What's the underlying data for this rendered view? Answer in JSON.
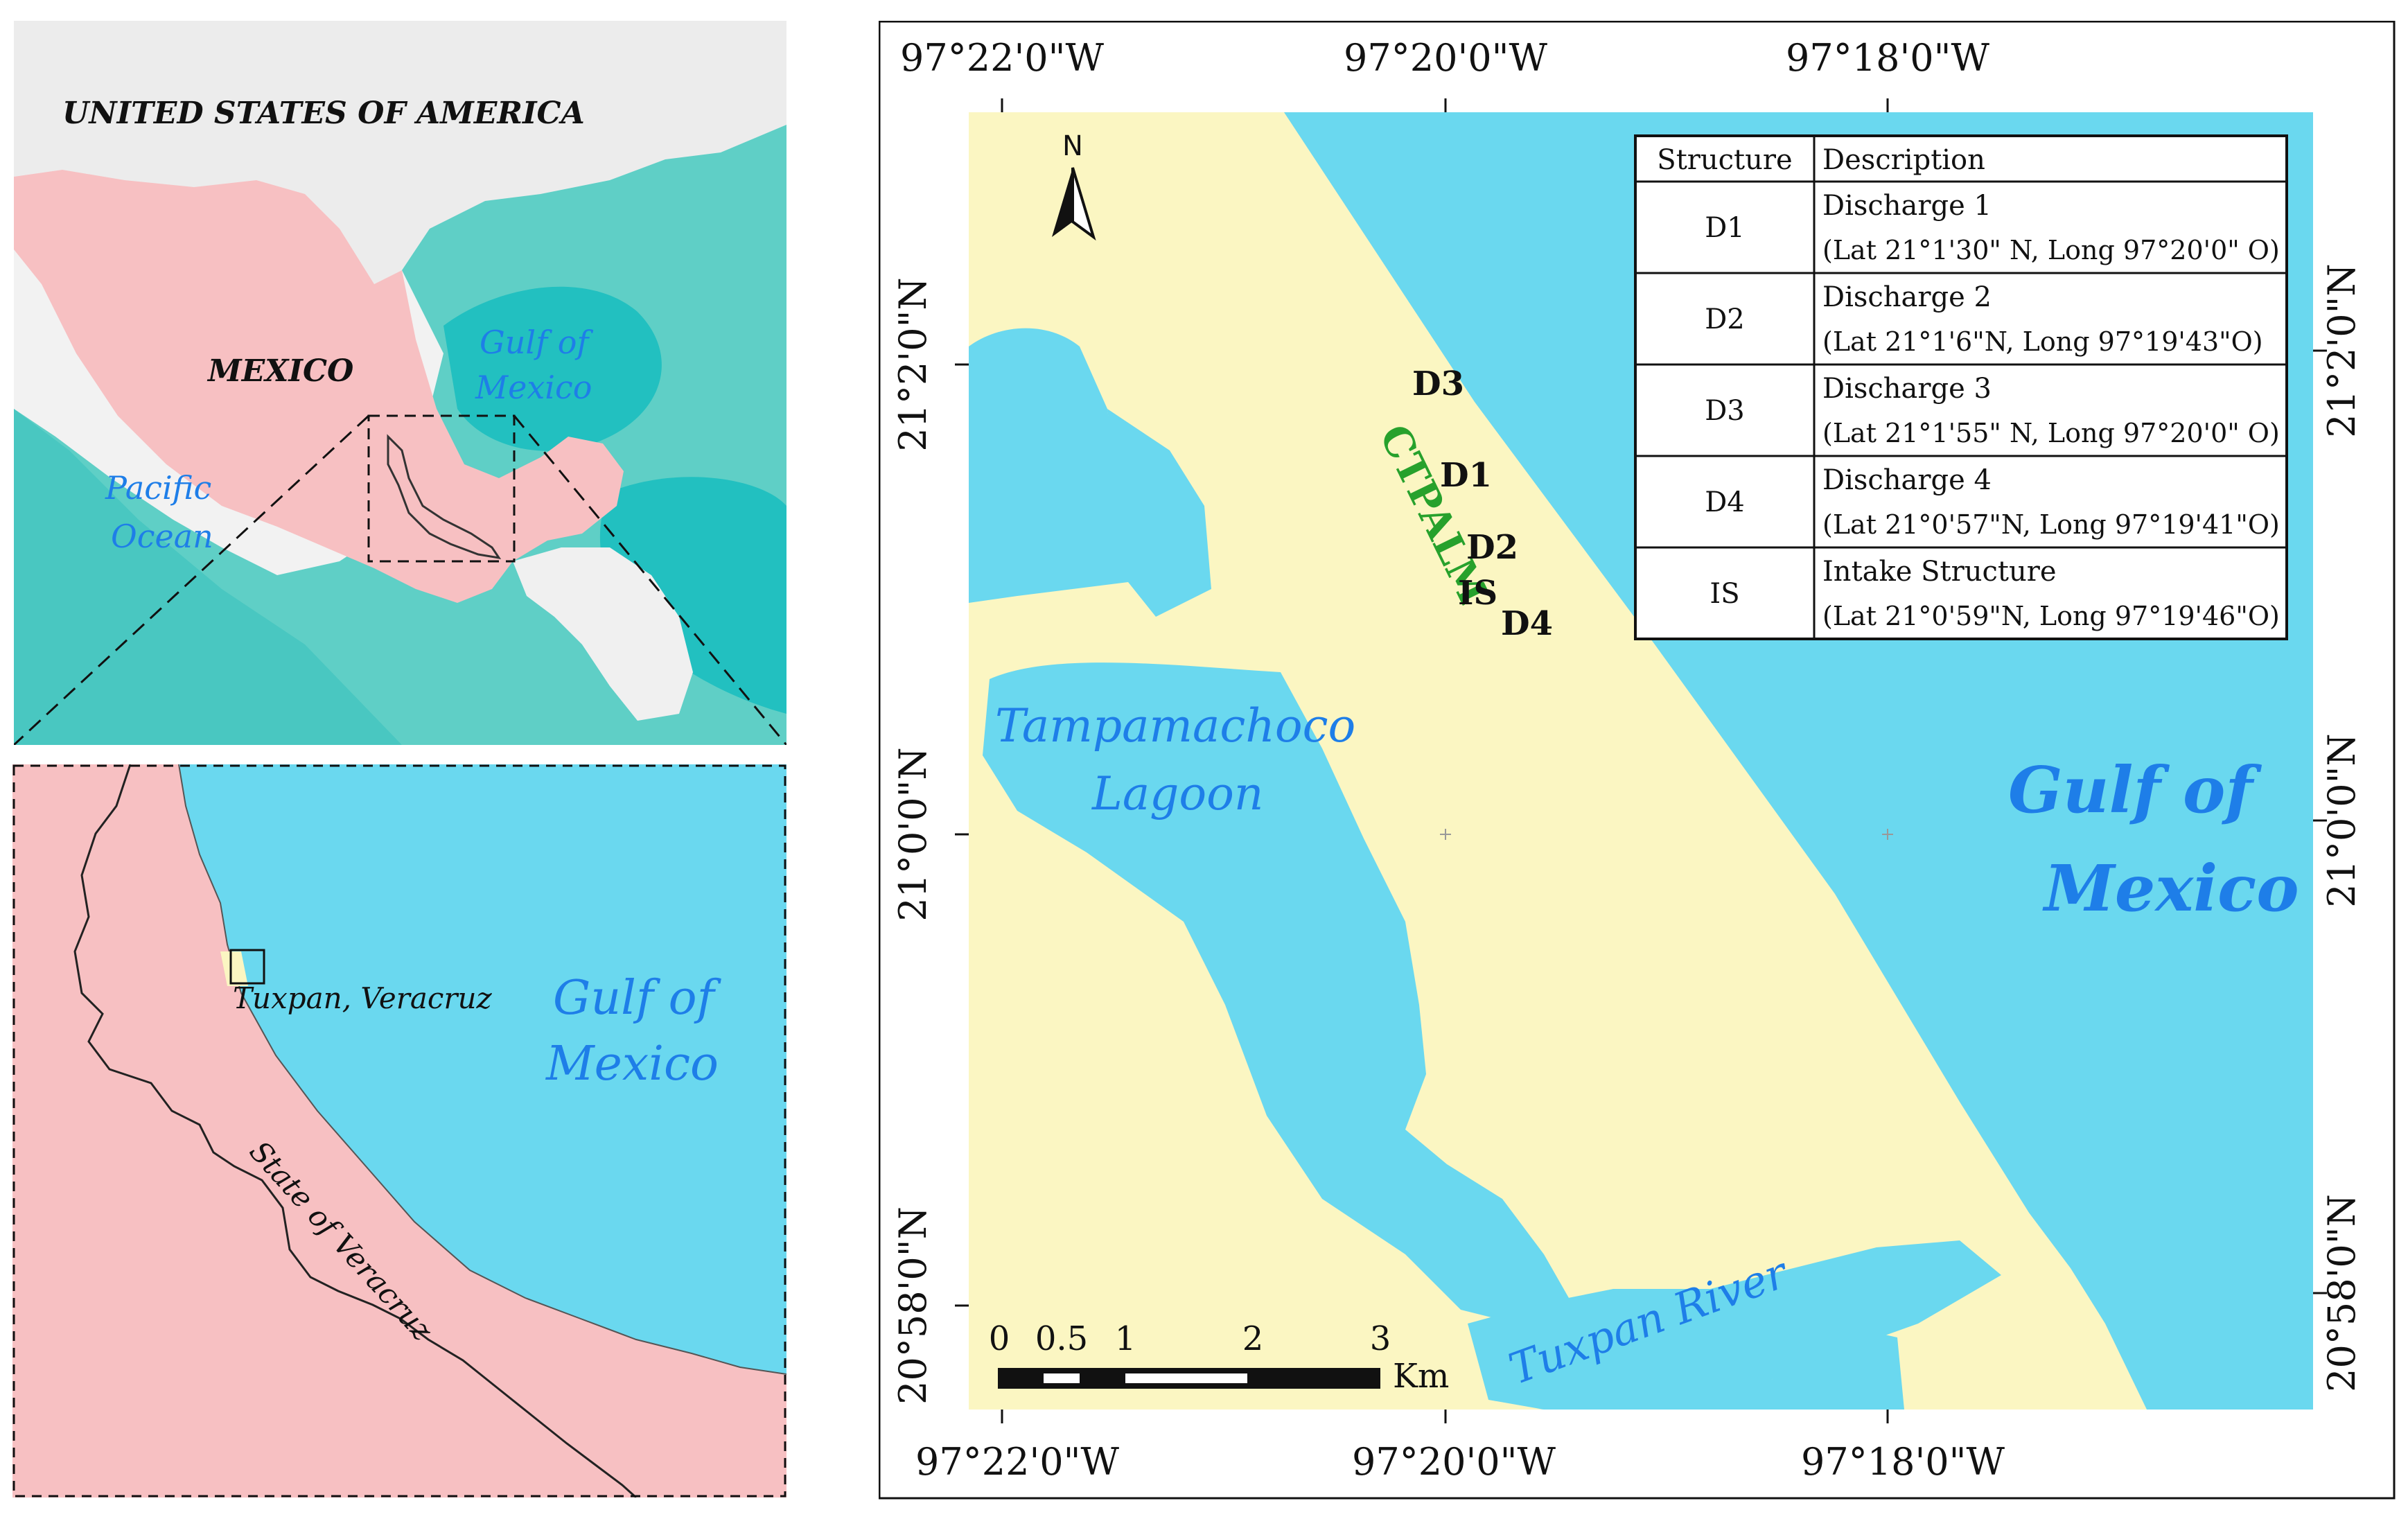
{
  "overview": {
    "country_usa": "UNITED STATES OF AMERICA",
    "country_mexico": "MEXICO",
    "gulf_line1": "Gulf of",
    "gulf_line2": "Mexico",
    "pacific_line1": "Pacific",
    "pacific_line2": "Ocean"
  },
  "regional": {
    "city": "Tuxpan, Veracruz",
    "state": "State of Veracruz",
    "gulf_line1": "Gulf of",
    "gulf_line2": "Mexico"
  },
  "detail": {
    "top_ticks": [
      "97°22'0\"W",
      "97°20'0\"W",
      "97°18'0\"W"
    ],
    "bottom_ticks": [
      "97°22'0\"W",
      "97°20'0\"W",
      "97°18'0\"W"
    ],
    "left_ticks": [
      "21°2'0\"N",
      "21°0'0\"N",
      "20°58'0\"N"
    ],
    "right_ticks": [
      "21°2'0\"N",
      "21°0'0\"N",
      "20°58'0\"N"
    ],
    "north_label": "N",
    "plant_label": "CTPALM",
    "lagoon_line1": "Tampamachoco",
    "lagoon_line2": "Lagoon",
    "gulf_line1": "Gulf of",
    "gulf_line2": "Mexico",
    "river_label": "Tuxpan River",
    "site_labels": {
      "d3": "D3",
      "d1": "D1",
      "d2": "D2",
      "is": "IS",
      "d4": "D4"
    },
    "scale": {
      "ticks": [
        "0",
        "0.5",
        "1",
        "2",
        "3"
      ],
      "unit": "Km"
    },
    "table": {
      "headers": [
        "Structure",
        "Description"
      ],
      "rows": [
        {
          "code": "D1",
          "line1": "Discharge 1",
          "line2": "(Lat 21°1'30\" N, Long 97°20'0\" O)"
        },
        {
          "code": "D2",
          "line1": "Discharge 2",
          "line2": "(Lat 21°1'6\"N, Long 97°19'43\"O)"
        },
        {
          "code": "D3",
          "line1": "Discharge 3",
          "line2": "(Lat 21°1'55\" N, Long 97°20'0\" O)"
        },
        {
          "code": "D4",
          "line1": "Discharge 4",
          "line2": "(Lat 21°0'57\"N, Long 97°19'41\"O)"
        },
        {
          "code": "IS",
          "line1": "Intake Structure",
          "line2": "(Lat 21°0'59\"N, Long 97°19'46\"O)"
        }
      ]
    }
  },
  "colors": {
    "water": "#6ad8ef",
    "land_pink": "#f7c0c2",
    "land_yellow": "#fbf6c2",
    "label_blue": "#1e7ee8",
    "plant_green": "#27a12c",
    "shelf_teal": "#5fcfc6",
    "deep_teal": "#22c0c0"
  }
}
